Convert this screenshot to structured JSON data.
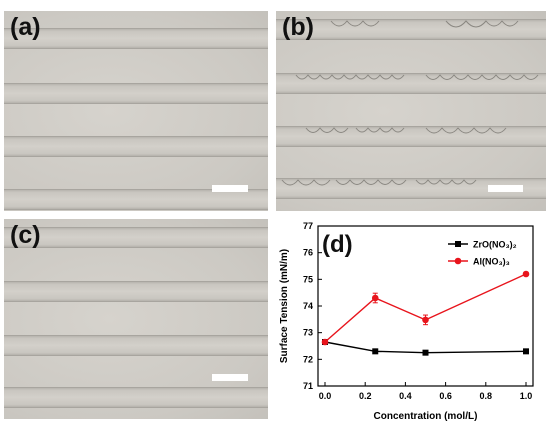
{
  "panels": [
    {
      "label": "(a)",
      "channels": 4,
      "scale_bar": true
    },
    {
      "label": "(b)",
      "channels": 4,
      "scale_bar": true
    },
    {
      "label": "(c)",
      "channels": 4,
      "scale_bar": true
    }
  ],
  "chart_data": {
    "type": "line",
    "panel_label": "(d)",
    "xlabel": "Concentration (mol/L)",
    "ylabel": "Surface Tension (mN/m)",
    "xlim": [
      0.0,
      1.0
    ],
    "ylim": [
      71,
      77
    ],
    "x_ticks": [
      "0.0",
      "0.2",
      "0.4",
      "0.6",
      "0.8",
      "1.0"
    ],
    "y_ticks": [
      "71",
      "72",
      "73",
      "74",
      "75",
      "76",
      "77"
    ],
    "x": [
      0.0,
      0.25,
      0.5,
      1.0
    ],
    "series": [
      {
        "name": "ZrO(NO₃)₂",
        "color": "#000000",
        "marker": "square",
        "values": [
          72.65,
          72.3,
          72.25,
          72.3
        ],
        "errors": [
          0.05,
          0.05,
          0.05,
          0.05
        ]
      },
      {
        "name": "Al(NO₃)₃",
        "color": "#e8141c",
        "marker": "circle",
        "values": [
          72.65,
          74.3,
          73.48,
          75.2
        ],
        "errors": [
          0.05,
          0.18,
          0.18,
          0.05
        ]
      }
    ],
    "legend_position": "top-right",
    "grid": false
  }
}
